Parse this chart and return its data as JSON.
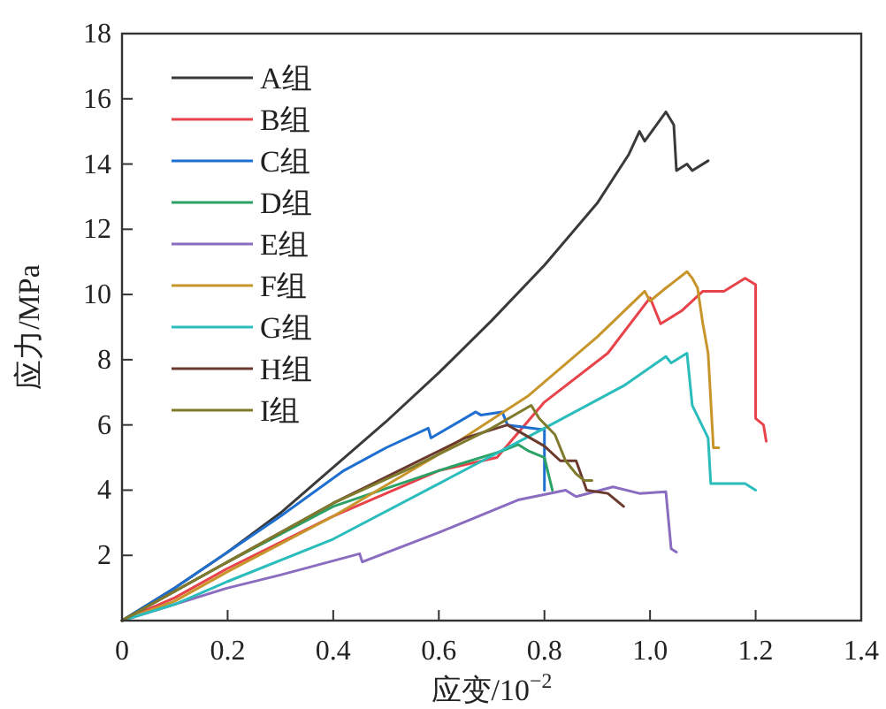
{
  "chart_data": {
    "type": "line",
    "xlabel": "应变/10$^{−2}$",
    "ylabel": "应力/MPa",
    "xlim": [
      0,
      1.4
    ],
    "ylim": [
      0,
      18
    ],
    "xticks": [
      0,
      0.2,
      0.4,
      0.6,
      0.8,
      {
        "value": 1,
        "label": "1.0"
      },
      1.2,
      1.4
    ],
    "yticks": [
      {
        "value": 0,
        "label": null
      },
      2,
      4,
      6,
      8,
      10,
      12,
      14,
      16,
      18
    ],
    "legend": "top left",
    "grid": false,
    "marker": "none",
    "line_style": "solid",
    "series": [
      {
        "name": "A组",
        "color": "#3a3a3a",
        "x": [
          0,
          0.1,
          0.2,
          0.3,
          0.4,
          0.5,
          0.6,
          0.7,
          0.8,
          0.9,
          0.96,
          0.98,
          0.99,
          1.03,
          1.045,
          1.05,
          1.07,
          1.08,
          1.11
        ],
        "values": [
          0,
          1.0,
          2.1,
          3.3,
          4.7,
          6.1,
          7.6,
          9.2,
          10.9,
          12.8,
          14.3,
          15.0,
          14.7,
          15.6,
          15.2,
          13.8,
          14.0,
          13.8,
          14.1
        ]
      },
      {
        "name": "B组",
        "color": "#e8424a",
        "x": [
          0,
          0.1,
          0.2,
          0.4,
          0.6,
          0.71,
          0.8,
          0.92,
          1.0,
          1.02,
          1.06,
          1.1,
          1.14,
          1.18,
          1.2,
          1.2,
          1.215,
          1.22
        ],
        "values": [
          0,
          0.7,
          1.6,
          3.2,
          4.6,
          5.0,
          6.7,
          8.2,
          9.9,
          9.1,
          9.5,
          10.1,
          10.1,
          10.5,
          10.3,
          6.2,
          6.0,
          5.5
        ]
      },
      {
        "name": "C组",
        "color": "#1f6fd0",
        "x": [
          0,
          0.1,
          0.2,
          0.3,
          0.42,
          0.5,
          0.58,
          0.585,
          0.67,
          0.68,
          0.72,
          0.73,
          0.8,
          0.8,
          0.8
        ],
        "values": [
          0,
          1.0,
          2.1,
          3.2,
          4.6,
          5.3,
          5.9,
          5.6,
          6.4,
          6.3,
          6.4,
          6.0,
          5.85,
          5.0,
          4.0
        ]
      },
      {
        "name": "D组",
        "color": "#2aa266",
        "x": [
          0,
          0.1,
          0.2,
          0.4,
          0.6,
          0.72,
          0.75,
          0.77,
          0.8,
          0.815
        ],
        "values": [
          0,
          0.9,
          1.8,
          3.5,
          4.6,
          5.2,
          5.4,
          5.2,
          5.0,
          4.0
        ]
      },
      {
        "name": "E组",
        "color": "#8a6cc0",
        "x": [
          0,
          0.1,
          0.2,
          0.3,
          0.45,
          0.455,
          0.6,
          0.75,
          0.84,
          0.86,
          0.93,
          0.98,
          1.03,
          1.04,
          1.05
        ],
        "values": [
          0,
          0.5,
          1.0,
          1.4,
          2.05,
          1.8,
          2.7,
          3.7,
          4.0,
          3.8,
          4.1,
          3.9,
          3.95,
          2.2,
          2.1
        ]
      },
      {
        "name": "F组",
        "color": "#c8952a",
        "x": [
          0,
          0.1,
          0.2,
          0.4,
          0.59,
          0.77,
          0.9,
          0.99,
          1.0,
          1.03,
          1.07,
          1.08,
          1.09,
          1.1,
          1.11,
          1.12,
          1.13
        ],
        "values": [
          0,
          0.6,
          1.5,
          3.2,
          5.0,
          6.9,
          8.7,
          10.1,
          9.8,
          10.2,
          10.7,
          10.5,
          10.2,
          9.1,
          8.2,
          5.3,
          5.3
        ]
      },
      {
        "name": "G组",
        "color": "#2bbcbc",
        "x": [
          0,
          0.1,
          0.2,
          0.4,
          0.6,
          0.8,
          0.95,
          1.03,
          1.04,
          1.07,
          1.08,
          1.11,
          1.115,
          1.18,
          1.2
        ],
        "values": [
          0,
          0.5,
          1.2,
          2.5,
          4.2,
          5.9,
          7.2,
          8.1,
          7.9,
          8.2,
          6.6,
          5.6,
          4.2,
          4.2,
          4.0
        ]
      },
      {
        "name": "H组",
        "color": "#6b3a2e",
        "x": [
          0,
          0.1,
          0.2,
          0.4,
          0.55,
          0.65,
          0.73,
          0.8,
          0.83,
          0.86,
          0.88,
          0.92,
          0.95
        ],
        "values": [
          0,
          0.9,
          1.8,
          3.6,
          4.8,
          5.6,
          6.0,
          5.35,
          4.9,
          4.9,
          4.0,
          3.9,
          3.5
        ]
      },
      {
        "name": "I组",
        "color": "#7f7a2c",
        "x": [
          0,
          0.1,
          0.2,
          0.4,
          0.55,
          0.7,
          0.775,
          0.79,
          0.82,
          0.84,
          0.86,
          0.875,
          0.89
        ],
        "values": [
          0,
          0.9,
          1.8,
          3.6,
          4.7,
          5.9,
          6.6,
          6.2,
          5.7,
          4.9,
          4.5,
          4.3,
          4.3
        ]
      }
    ]
  }
}
